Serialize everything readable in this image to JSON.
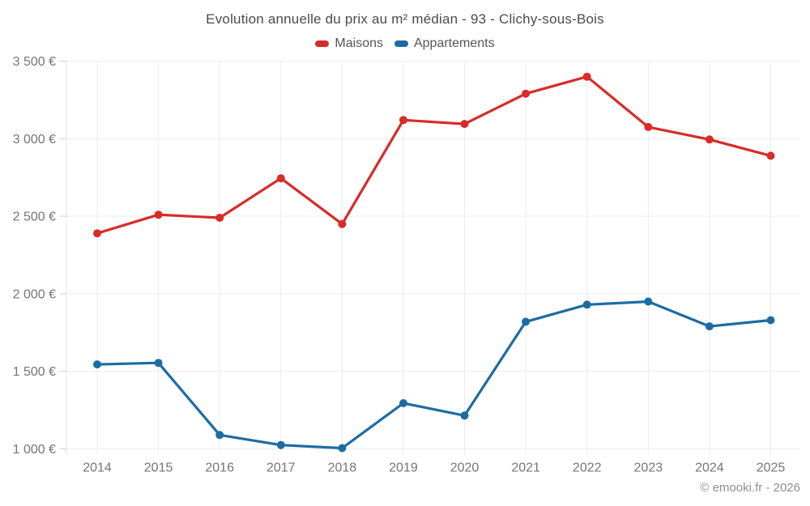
{
  "footer": {
    "credit": "© emooki.fr - 2026"
  },
  "chart_data": {
    "type": "line",
    "title": "Evolution annuelle du prix au m² médian - 93 - Clichy-sous-Bois",
    "categories": [
      "2014",
      "2015",
      "2016",
      "2017",
      "2018",
      "2019",
      "2020",
      "2021",
      "2022",
      "2023",
      "2024",
      "2025"
    ],
    "series": [
      {
        "name": "Maisons",
        "color": "#d92b27",
        "values": [
          2390,
          2510,
          2490,
          2745,
          2450,
          3120,
          3095,
          3290,
          3400,
          3075,
          2995,
          2890
        ]
      },
      {
        "name": "Appartements",
        "color": "#1c6ca3",
        "values": [
          1545,
          1555,
          1090,
          1025,
          1005,
          1295,
          1215,
          1820,
          1930,
          1950,
          1790,
          1830
        ]
      }
    ],
    "ylabel": "",
    "xlabel": "",
    "ylim": [
      1000,
      3500
    ],
    "ytick_step": 500,
    "ytick_labels": [
      "1 000 €",
      "1 500 €",
      "2 000 €",
      "2 500 €",
      "3 000 €",
      "3 500 €"
    ],
    "grid": true,
    "legend_position": "top",
    "colors": {
      "grid": "#ececec",
      "axis": "#e3e3e3",
      "tick": "#cfcfcf",
      "tick_label": "#757575"
    }
  }
}
